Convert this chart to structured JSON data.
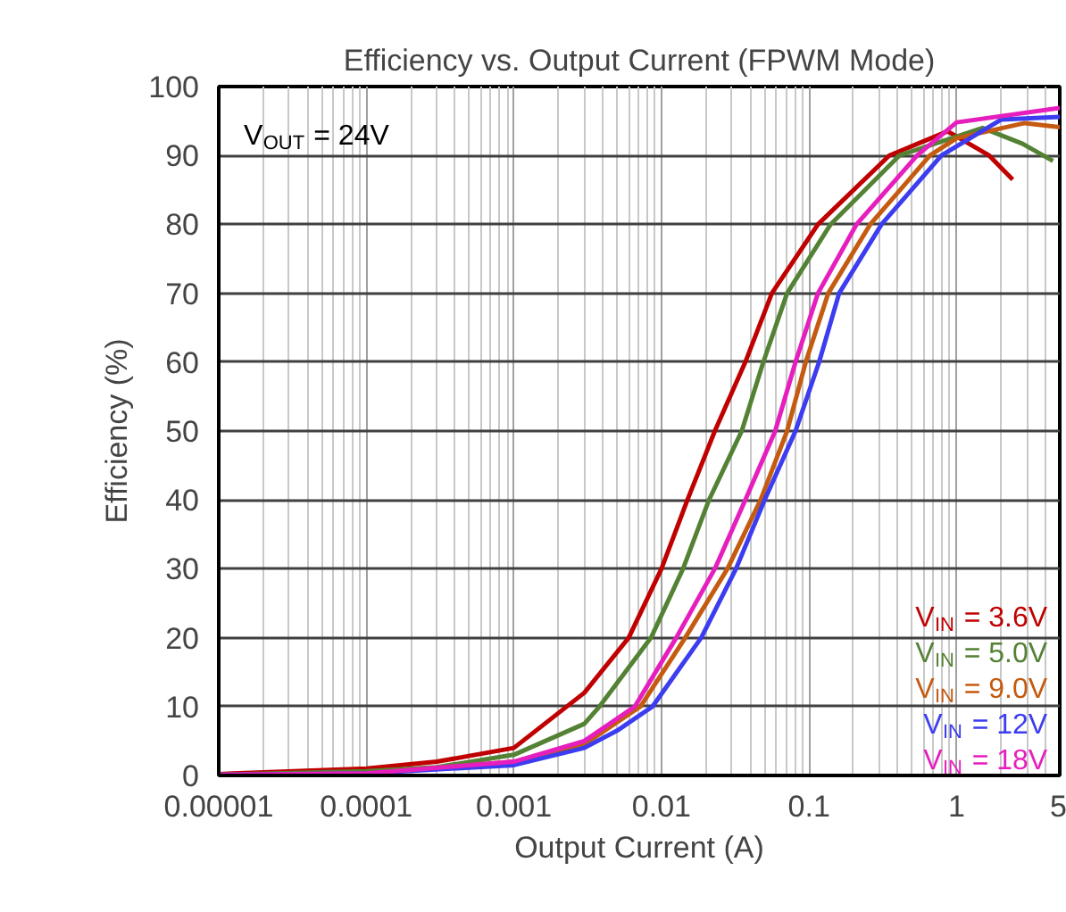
{
  "chart_data": {
    "type": "line",
    "title": "Efficiency vs. Output Current (FPWM Mode)",
    "xlabel": "Output Current (A)",
    "ylabel": "Efficiency (%)",
    "log": "x",
    "grid": true,
    "line_style": "solid",
    "xlim": [
      1e-05,
      5
    ],
    "ylim": [
      0,
      100
    ],
    "xticks": [
      {
        "value": 1e-05,
        "label": "0.00001"
      },
      {
        "value": 0.0001,
        "label": "0.0001"
      },
      {
        "value": 0.001,
        "label": "0.001"
      },
      {
        "value": 0.01,
        "label": "0.01"
      },
      {
        "value": 0.1,
        "label": "0.1"
      },
      1,
      5
    ],
    "yticks": [
      0,
      10,
      20,
      30,
      40,
      50,
      60,
      70,
      80,
      90,
      100
    ],
    "annotations": [
      "V$_{OUT}$ = 24V"
    ],
    "series": [
      {
        "name": "V$_{IN}$ = 3.6V",
        "color": "#c00000",
        "x": [
          1e-05,
          0.0001,
          0.0003,
          0.001,
          0.003,
          0.006,
          0.01,
          0.015,
          0.023,
          0.037,
          0.056,
          0.115,
          0.35,
          0.87,
          1.66,
          2.4
        ],
        "values": [
          0.2,
          1,
          2,
          4,
          12,
          20,
          30,
          40,
          50,
          60,
          70,
          80,
          90,
          93.5,
          90,
          86.5
        ]
      },
      {
        "name": "V$_{IN}$ = 5.0V",
        "color": "#548235",
        "x": [
          1e-05,
          0.0001,
          0.0003,
          0.001,
          0.003,
          0.0038,
          0.0085,
          0.014,
          0.021,
          0.035,
          0.049,
          0.071,
          0.14,
          0.41,
          1.5,
          2.8,
          4.5
        ],
        "values": [
          0.1,
          0.6,
          1.2,
          3,
          7.5,
          10,
          20,
          30,
          40,
          50,
          60,
          70,
          80,
          90,
          94,
          91.7,
          89.2
        ]
      },
      {
        "name": "V$_{IN}$ = 9.0V",
        "color": "#c55a11",
        "x": [
          1e-05,
          0.0001,
          0.001,
          0.003,
          0.0072,
          0.0145,
          0.028,
          0.047,
          0.071,
          0.095,
          0.135,
          0.26,
          0.66,
          1,
          2.9,
          5
        ],
        "values": [
          0.1,
          0.3,
          2,
          4.5,
          10,
          20,
          30,
          40,
          50,
          60,
          70,
          80,
          90,
          92.5,
          94.7,
          94.1
        ]
      },
      {
        "name": "V$_{IN}$ = 12V",
        "color": "#3c3cf0",
        "x": [
          1e-05,
          0.0001,
          0.001,
          0.003,
          0.005,
          0.0087,
          0.0186,
          0.032,
          0.05,
          0.081,
          0.117,
          0.16,
          0.31,
          0.79,
          2,
          5
        ],
        "values": [
          0.1,
          0.3,
          1.5,
          4,
          6.5,
          10,
          20,
          30,
          40,
          50,
          60,
          70,
          80,
          90,
          95.2,
          95.6
        ]
      },
      {
        "name": "V$_{IN}$ = 18V",
        "color": "#e61ebe",
        "x": [
          1e-05,
          0.0001,
          0.001,
          0.003,
          0.0066,
          0.0126,
          0.023,
          0.037,
          0.059,
          0.081,
          0.115,
          0.21,
          0.54,
          1,
          5
        ],
        "values": [
          0.1,
          0.3,
          2,
          5,
          10,
          20,
          30,
          40,
          50,
          60,
          70,
          80,
          90,
          94.8,
          96.9
        ]
      }
    ]
  }
}
